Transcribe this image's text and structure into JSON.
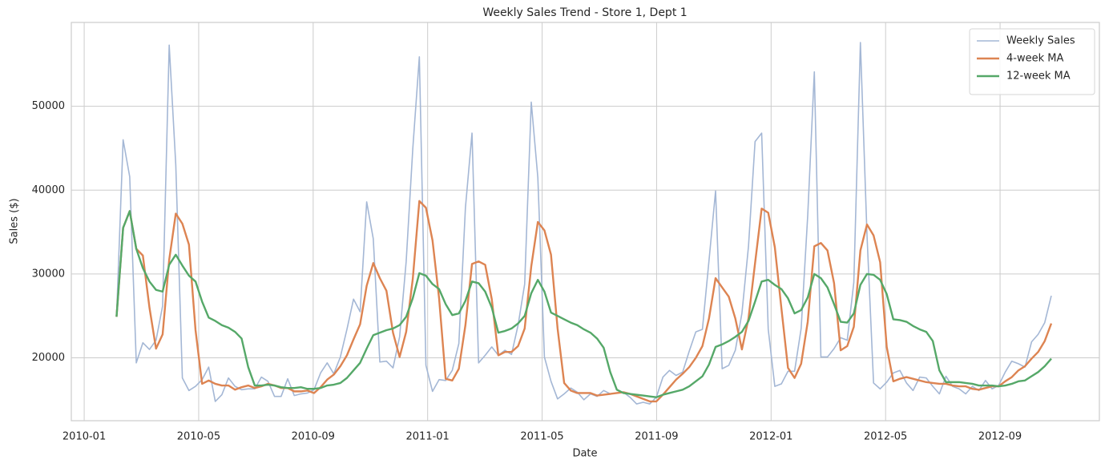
{
  "chart_data": {
    "type": "line",
    "title": "Weekly Sales Trend - Store 1, Dept 1",
    "x_label": "Date",
    "y_label": "Sales ($)",
    "x": [
      1.13,
      1.36,
      1.59,
      1.82,
      2.05,
      2.28,
      2.51,
      2.74,
      2.97,
      3.2,
      3.43,
      3.66,
      3.89,
      4.12,
      4.35,
      4.58,
      4.81,
      5.04,
      5.27,
      5.5,
      5.73,
      5.96,
      6.19,
      6.42,
      6.65,
      6.88,
      7.11,
      7.34,
      7.57,
      7.8,
      8.03,
      8.26,
      8.49,
      8.72,
      8.95,
      9.18,
      9.41,
      9.64,
      9.87,
      10.1,
      10.33,
      10.56,
      10.79,
      11.02,
      11.25,
      11.48,
      11.71,
      11.94,
      12.17,
      12.4,
      12.63,
      12.86,
      13.09,
      13.32,
      13.55,
      13.78,
      14.01,
      14.24,
      14.47,
      14.7,
      14.93,
      15.16,
      15.39,
      15.62,
      15.85,
      16.08,
      16.31,
      16.54,
      16.77,
      17.0,
      17.23,
      17.46,
      17.69,
      17.92,
      18.15,
      18.38,
      18.61,
      18.84,
      19.07,
      19.3,
      19.53,
      19.76,
      19.99,
      20.22,
      20.45,
      20.68,
      20.91,
      21.14,
      21.37,
      21.6,
      21.83,
      22.06,
      22.29,
      22.52,
      22.75,
      22.98,
      23.21,
      23.44,
      23.67,
      23.9,
      24.13,
      24.36,
      24.59,
      24.82,
      25.05,
      25.28,
      25.51,
      25.74,
      25.97,
      26.2,
      26.43,
      26.66,
      26.89,
      27.12,
      27.35,
      27.58,
      27.81,
      28.04,
      28.27,
      28.5,
      28.73,
      28.96,
      29.19,
      29.42,
      29.65,
      29.88,
      30.11,
      30.34,
      30.57,
      30.8,
      31.03,
      31.26,
      31.49,
      31.72,
      31.95,
      32.18,
      32.41,
      32.64,
      32.87,
      33.1,
      33.33,
      33.56,
      33.79
    ],
    "series": [
      {
        "name": "Weekly Sales",
        "color": "#a4b7d5",
        "width": 1.6,
        "values": [
          24900,
          46000,
          41600,
          19400,
          21800,
          21000,
          22100,
          26200,
          57300,
          43000,
          17600,
          16100,
          16600,
          17400,
          18900,
          14800,
          15600,
          17600,
          16600,
          16200,
          16300,
          16300,
          17700,
          17200,
          15400,
          15400,
          17500,
          15500,
          15700,
          15800,
          16200,
          18200,
          19400,
          18100,
          20100,
          23400,
          27000,
          25500,
          38600,
          34200,
          19500,
          19600,
          18800,
          22500,
          31500,
          44900,
          55900,
          19100,
          16000,
          17400,
          17300,
          18500,
          21700,
          37900,
          46800,
          19400,
          20300,
          21300,
          20300,
          20900,
          20400,
          23900,
          28800,
          50500,
          41500,
          20100,
          17200,
          15100,
          15700,
          16400,
          15900,
          15000,
          15700,
          15400,
          16100,
          15700,
          15800,
          15900,
          15300,
          14500,
          14700,
          14500,
          15300,
          17700,
          18500,
          17900,
          18300,
          20800,
          23100,
          23400,
          31600,
          39900,
          18700,
          19100,
          20900,
          25300,
          33300,
          45800,
          46800,
          23400,
          16600,
          16900,
          18400,
          18400,
          23500,
          37000,
          54100,
          20100,
          20100,
          21100,
          22400,
          22100,
          29000,
          57600,
          34700,
          17000,
          16300,
          17100,
          18200,
          18500,
          17000,
          16100,
          17700,
          17600,
          16600,
          15700,
          17800,
          16600,
          16300,
          15700,
          16600,
          16100,
          17300,
          16300,
          16700,
          18300,
          19600,
          19300,
          18900,
          21900,
          22800,
          24200,
          27400
        ]
      },
      {
        "name": "4-week MA",
        "color": "#dd8452",
        "width": 2.4,
        "values": [
          24900,
          35500,
          37500,
          33000,
          32200,
          26000,
          21100,
          22800,
          31700,
          37200,
          36000,
          33500,
          23300,
          16900,
          17300,
          16900,
          16700,
          16700,
          16200,
          16500,
          16700,
          16400,
          16600,
          16900,
          16700,
          16400,
          16400,
          16000,
          16000,
          16100,
          15800,
          16500,
          17400,
          18000,
          19000,
          20300,
          22200,
          24000,
          28600,
          31300,
          29500,
          28000,
          23000,
          20100,
          23100,
          29400,
          38700,
          37900,
          34000,
          27100,
          17500,
          17300,
          18700,
          23900,
          31200,
          31500,
          31100,
          27000,
          20300,
          20700,
          20700,
          21400,
          23500,
          30900,
          36200,
          35200,
          32300,
          23500,
          17000,
          16100,
          15800,
          15800,
          15800,
          15500,
          15600,
          15700,
          15800,
          15900,
          15700,
          15400,
          15100,
          14800,
          14800,
          15600,
          16500,
          17400,
          18100,
          18900,
          20000,
          21400,
          24700,
          29500,
          28400,
          27300,
          24700,
          21000,
          24700,
          31300,
          37800,
          37300,
          33200,
          25900,
          18800,
          17600,
          19300,
          24300,
          33300,
          33700,
          32800,
          28900,
          20900,
          21400,
          23700,
          32800,
          35900,
          34600,
          31400,
          21300,
          17200,
          17500,
          17700,
          17500,
          17300,
          17100,
          17000,
          16900,
          16900,
          16700,
          16600,
          16600,
          16300,
          16200,
          16400,
          16600,
          16600,
          17200,
          17700,
          18500,
          19000,
          19900,
          20700,
          22000,
          24100
        ]
      },
      {
        "name": "12-week MA",
        "color": "#55a868",
        "width": 2.4,
        "values": [
          24900,
          35500,
          37500,
          33000,
          30700,
          29100,
          28100,
          27900,
          31100,
          32300,
          31000,
          29800,
          29100,
          26700,
          24800,
          24400,
          23900,
          23600,
          23100,
          22300,
          18900,
          16700,
          16700,
          16800,
          16700,
          16500,
          16400,
          16400,
          16500,
          16300,
          16300,
          16400,
          16700,
          16800,
          17000,
          17600,
          18500,
          19400,
          21100,
          22700,
          23000,
          23300,
          23500,
          23900,
          24900,
          27100,
          30100,
          29800,
          28800,
          28200,
          26400,
          25100,
          25300,
          26800,
          29100,
          28900,
          27900,
          26000,
          23000,
          23200,
          23500,
          24100,
          25000,
          27700,
          29300,
          27900,
          25400,
          25000,
          24600,
          24200,
          23900,
          23400,
          23000,
          22300,
          21200,
          18300,
          16200,
          15800,
          15700,
          15600,
          15500,
          15400,
          15300,
          15600,
          15800,
          16000,
          16200,
          16600,
          17200,
          17800,
          19200,
          21300,
          21600,
          22000,
          22500,
          23100,
          24400,
          26700,
          29100,
          29300,
          28700,
          28200,
          27100,
          25300,
          25700,
          27200,
          30000,
          29500,
          28400,
          26400,
          24300,
          24200,
          25300,
          28700,
          30000,
          29900,
          29300,
          27600,
          24600,
          24500,
          24300,
          23800,
          23400,
          23100,
          22000,
          18500,
          17100,
          17100,
          17100,
          17000,
          16900,
          16700,
          16700,
          16700,
          16600,
          16700,
          16900,
          17200,
          17300,
          17800,
          18300,
          19000,
          19900
        ]
      }
    ],
    "xlim": [
      -0.45,
      35.47
    ],
    "xticks": [
      {
        "value": 0,
        "label": "2010-01"
      },
      {
        "value": 4,
        "label": "2010-05"
      },
      {
        "value": 8,
        "label": "2010-09"
      },
      {
        "value": 12,
        "label": "2011-01"
      },
      {
        "value": 16,
        "label": "2011-05"
      },
      {
        "value": 20,
        "label": "2011-09"
      },
      {
        "value": 24,
        "label": "2012-01"
      },
      {
        "value": 28,
        "label": "2012-05"
      },
      {
        "value": 32,
        "label": "2012-09"
      }
    ],
    "ylim": [
      12500,
      60000
    ],
    "yticks": [
      20000,
      30000,
      40000,
      50000
    ],
    "grid": true,
    "legend": "upper right"
  }
}
